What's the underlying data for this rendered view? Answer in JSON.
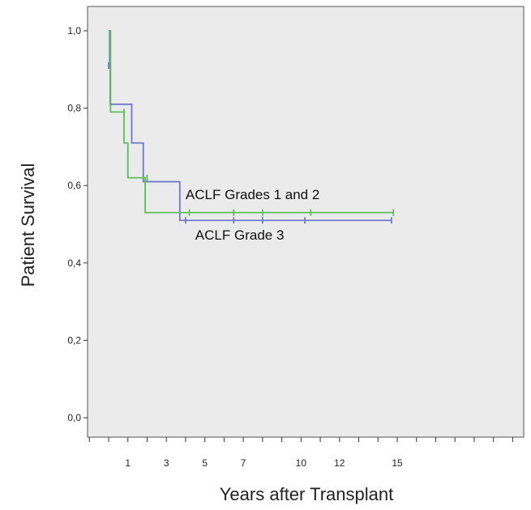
{
  "chart_data": {
    "type": "line",
    "subtype": "kaplan-meier",
    "xlabel": "Years after Transplant",
    "ylabel": "Patient Survival",
    "ylim": [
      0,
      1
    ],
    "xlim": [
      -1.2,
      21
    ],
    "grid": false,
    "background": "#ebebeb",
    "y_ticks": [
      {
        "value": 0.0,
        "label": "0,0"
      },
      {
        "value": 0.2,
        "label": "0,2"
      },
      {
        "value": 0.4,
        "label": "0,4"
      },
      {
        "value": 0.6,
        "label": "0,6"
      },
      {
        "value": 0.8,
        "label": "0,8"
      },
      {
        "value": 1.0,
        "label": "1,0"
      }
    ],
    "x_minor_ticks": [
      -1,
      0,
      1,
      2,
      3,
      4,
      5,
      6,
      7,
      8,
      9,
      10,
      11,
      12,
      13,
      14,
      15,
      16,
      17,
      18,
      19,
      20,
      21
    ],
    "x_tick_labels": [
      {
        "value": 1,
        "label": "1"
      },
      {
        "value": 3,
        "label": "3"
      },
      {
        "value": 5,
        "label": "5"
      },
      {
        "value": 7,
        "label": "7"
      },
      {
        "value": 10,
        "label": "10"
      },
      {
        "value": 12,
        "label": "12"
      },
      {
        "value": 15,
        "label": "15"
      }
    ],
    "series": [
      {
        "name": "ACLF Grade 3",
        "color": "#6f79c9",
        "steps": [
          {
            "x": 0.0,
            "y": 1.0
          },
          {
            "x": 0.05,
            "y": 0.91
          },
          {
            "x": 0.08,
            "y": 0.81
          },
          {
            "x": 1.2,
            "y": 0.71
          },
          {
            "x": 1.8,
            "y": 0.61
          },
          {
            "x": 3.7,
            "y": 0.51
          },
          {
            "x": 14.7,
            "y": 0.51
          }
        ],
        "censored": [
          {
            "x": 0.0,
            "y": 0.91
          },
          {
            "x": 4.0,
            "y": 0.51
          },
          {
            "x": 6.5,
            "y": 0.51
          },
          {
            "x": 8.0,
            "y": 0.51
          },
          {
            "x": 10.2,
            "y": 0.51
          },
          {
            "x": 14.7,
            "y": 0.51
          }
        ]
      },
      {
        "name": "ACLF Grades 1 and 2",
        "color": "#5cbf5c",
        "steps": [
          {
            "x": 0.0,
            "y": 1.0
          },
          {
            "x": 0.1,
            "y": 0.79
          },
          {
            "x": 0.8,
            "y": 0.71
          },
          {
            "x": 1.0,
            "y": 0.62
          },
          {
            "x": 1.9,
            "y": 0.53
          },
          {
            "x": 14.8,
            "y": 0.53
          }
        ],
        "censored": [
          {
            "x": 0.8,
            "y": 0.79
          },
          {
            "x": 2.0,
            "y": 0.62
          },
          {
            "x": 4.2,
            "y": 0.53
          },
          {
            "x": 6.5,
            "y": 0.53
          },
          {
            "x": 8.0,
            "y": 0.53
          },
          {
            "x": 10.5,
            "y": 0.53
          },
          {
            "x": 14.8,
            "y": 0.53
          }
        ]
      }
    ],
    "annotations": [
      {
        "text": "ACLF Grades 1 and 2",
        "x": 4.0,
        "y": 0.565
      },
      {
        "text": "ACLF Grade 3",
        "x": 4.5,
        "y": 0.46
      }
    ]
  }
}
